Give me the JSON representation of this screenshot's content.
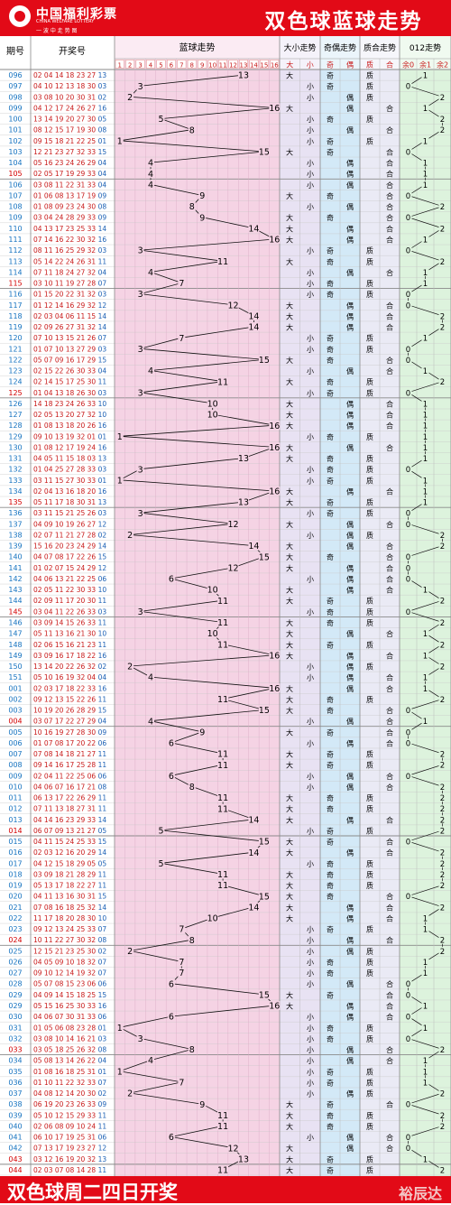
{
  "header": {
    "logo_cn": "中国福利彩票",
    "logo_en": "CHINA WELFARE LOTTERY",
    "logo_slogan": "一 波 中 走 势 图",
    "title": "双色球蓝球走势"
  },
  "columns": {
    "issue": "期号",
    "draw": "开奖号",
    "blue_trend": "蓝球走势",
    "bigsmall": "大小走势",
    "oddeven": "奇偶走势",
    "primecomp": "质合走势",
    "mod3": "012走势"
  },
  "subheaders": {
    "bigsmall": [
      "大",
      "小"
    ],
    "oddeven": [
      "奇",
      "偶"
    ],
    "primecomp": [
      "质",
      "合"
    ],
    "mod3": [
      "余0",
      "余1",
      "余2"
    ]
  },
  "marks": {
    "big": "大",
    "small": "小",
    "odd": "奇",
    "even": "偶",
    "prime": "质",
    "composite": "合"
  },
  "blue_numbers": [
    "1",
    "2",
    "3",
    "4",
    "5",
    "6",
    "7",
    "8",
    "9",
    "10",
    "11",
    "12",
    "13",
    "14",
    "15",
    "16"
  ],
  "colors": {
    "header_red": "#e20a17",
    "trend_bg": "#f5d3e4",
    "bigsmall_bg": "#e8e2f3",
    "oddeven_bg": "#d3e9f7",
    "primecomp_bg": "#eaeaf5",
    "mod3_bg": "#ddf3dd",
    "issue_text": "#1673c0",
    "draw_text": "#c81919",
    "line": "#111111"
  },
  "chart_data": {
    "type": "line",
    "title": "双色球蓝球走势",
    "ylabel": "期号",
    "xlabel": "蓝球走势",
    "xlim": [
      1,
      16
    ],
    "rows": [
      {
        "issue": "096",
        "reds": "02 04 14 18 23 27",
        "blue": 13
      },
      {
        "issue": "097",
        "reds": "04 10 12 13 18 30",
        "blue": 3
      },
      {
        "issue": "098",
        "reds": "03 08 10 20 30 31",
        "blue": 2
      },
      {
        "issue": "099",
        "reds": "04 12 17 24 26 27",
        "blue": 16
      },
      {
        "issue": "100",
        "reds": "13 14 19 20 27 30",
        "blue": 5
      },
      {
        "issue": "101",
        "reds": "08 12 15 17 19 30",
        "blue": 8
      },
      {
        "issue": "102",
        "reds": "09 15 18 21 22 25",
        "blue": 1
      },
      {
        "issue": "103",
        "reds": "12 21 23 27 32 33",
        "blue": 15
      },
      {
        "issue": "104",
        "reds": "05 16 23 24 26 29",
        "blue": 4
      },
      {
        "issue": "105",
        "reds": "02 05 17 19 29 33",
        "blue": 4
      },
      {
        "issue": "106",
        "reds": "03 08 11 22 31 33",
        "blue": 4
      },
      {
        "issue": "107",
        "reds": "01 06 08 13 17 19",
        "blue": 9
      },
      {
        "issue": "108",
        "reds": "01 08 09 23 24 30",
        "blue": 8
      },
      {
        "issue": "109",
        "reds": "03 04 24 28 29 33",
        "blue": 9
      },
      {
        "issue": "110",
        "reds": "04 13 17 23 25 33",
        "blue": 14
      },
      {
        "issue": "111",
        "reds": "07 14 16 22 30 32",
        "blue": 16
      },
      {
        "issue": "112",
        "reds": "08 11 16 25 29 32",
        "blue": 3
      },
      {
        "issue": "113",
        "reds": "05 14 22 24 26 31",
        "blue": 11
      },
      {
        "issue": "114",
        "reds": "07 11 18 24 27 32",
        "blue": 4
      },
      {
        "issue": "115",
        "reds": "03 10 11 19 27 28",
        "blue": 7
      },
      {
        "issue": "116",
        "reds": "01 15 20 22 31 32",
        "blue": 3
      },
      {
        "issue": "117",
        "reds": "01 12 14 16 29 32",
        "blue": 12
      },
      {
        "issue": "118",
        "reds": "02 03 04 06 11 15",
        "blue": 14
      },
      {
        "issue": "119",
        "reds": "02 09 26 27 31 32",
        "blue": 14
      },
      {
        "issue": "120",
        "reds": "07 10 13 15 21 26",
        "blue": 7
      },
      {
        "issue": "121",
        "reds": "01 07 10 13 27 29",
        "blue": 3
      },
      {
        "issue": "122",
        "reds": "05 07 09 16 17 29",
        "blue": 15
      },
      {
        "issue": "123",
        "reds": "02 15 22 26 30 33",
        "blue": 4
      },
      {
        "issue": "124",
        "reds": "02 14 15 17 25 30",
        "blue": 11
      },
      {
        "issue": "125",
        "reds": "01 04 13 18 26 30",
        "blue": 3
      },
      {
        "issue": "126",
        "reds": "14 18 23 24 26 33",
        "blue": 10
      },
      {
        "issue": "127",
        "reds": "02 05 13 20 27 32",
        "blue": 10
      },
      {
        "issue": "128",
        "reds": "01 08 13 18 20 26",
        "blue": 16
      },
      {
        "issue": "129",
        "reds": "09 10 13 19 32 01",
        "blue": 1
      },
      {
        "issue": "130",
        "reds": "01 08 12 17 19 24",
        "blue": 16
      },
      {
        "issue": "131",
        "reds": "04 05 11 15 18 03",
        "blue": 13
      },
      {
        "issue": "132",
        "reds": "01 04 25 27 28 33",
        "blue": 3
      },
      {
        "issue": "133",
        "reds": "03 11 15 27 30 33",
        "blue": 1
      },
      {
        "issue": "134",
        "reds": "02 04 13 16 18 20",
        "blue": 16
      },
      {
        "issue": "135",
        "reds": "05 11 17 18 30 31",
        "blue": 13
      },
      {
        "issue": "136",
        "reds": "03 11 15 21 25 26",
        "blue": 3
      },
      {
        "issue": "137",
        "reds": "04 09 10 19 26 27",
        "blue": 12
      },
      {
        "issue": "138",
        "reds": "02 07 11 21 27 28",
        "blue": 2
      },
      {
        "issue": "139",
        "reds": "15 16 20 23 24 29",
        "blue": 14
      },
      {
        "issue": "140",
        "reds": "04 07 08 17 22 26",
        "blue": 15
      },
      {
        "issue": "141",
        "reds": "01 02 07 15 24 29",
        "blue": 12
      },
      {
        "issue": "142",
        "reds": "04 06 13 21 22 25",
        "blue": 6
      },
      {
        "issue": "143",
        "reds": "02 05 11 22 30 33",
        "blue": 10
      },
      {
        "issue": "144",
        "reds": "02 09 11 17 20 30",
        "blue": 11
      },
      {
        "issue": "145",
        "reds": "03 04 11 22 26 33",
        "blue": 3
      },
      {
        "issue": "146",
        "reds": "03 09 14 15 26 33",
        "blue": 11
      },
      {
        "issue": "147",
        "reds": "05 11 13 16 21 30",
        "blue": 10
      },
      {
        "issue": "148",
        "reds": "02 06 15 16 21 23",
        "blue": 11
      },
      {
        "issue": "149",
        "reds": "03 09 16 17 18 22",
        "blue": 16
      },
      {
        "issue": "150",
        "reds": "13 14 20 22 26 32",
        "blue": 2
      },
      {
        "issue": "151",
        "reds": "05 10 16 19 32 04",
        "blue": 4
      },
      {
        "issue": "001",
        "reds": "02 03 17 18 22 33",
        "blue": 16
      },
      {
        "issue": "002",
        "reds": "09 12 13 15 22 26",
        "blue": 11
      },
      {
        "issue": "003",
        "reds": "10 19 20 26 28 29",
        "blue": 15
      },
      {
        "issue": "004",
        "reds": "03 07 17 22 27 29",
        "blue": 4
      },
      {
        "issue": "005",
        "reds": "10 16 19 27 28 30",
        "blue": 9
      },
      {
        "issue": "006",
        "reds": "01 07 08 17 20 22",
        "blue": 6
      },
      {
        "issue": "007",
        "reds": "07 08 14 18 21 27",
        "blue": 11
      },
      {
        "issue": "008",
        "reds": "09 14 16 17 25 28",
        "blue": 11
      },
      {
        "issue": "009",
        "reds": "02 04 11 22 25 06",
        "blue": 6
      },
      {
        "issue": "010",
        "reds": "04 06 07 16 17 21",
        "blue": 8
      },
      {
        "issue": "011",
        "reds": "06 13 17 22 26 29",
        "blue": 11
      },
      {
        "issue": "012",
        "reds": "07 11 13 18 27 31",
        "blue": 11
      },
      {
        "issue": "013",
        "reds": "04 14 16 23 29 33",
        "blue": 14
      },
      {
        "issue": "014",
        "reds": "06 07 09 13 21 27",
        "blue": 5
      },
      {
        "issue": "015",
        "reds": "04 11 15 24 25 33",
        "blue": 15
      },
      {
        "issue": "016",
        "reds": "02 03 12 16 20 29",
        "blue": 14
      },
      {
        "issue": "017",
        "reds": "04 12 15 18 29 05",
        "blue": 5
      },
      {
        "issue": "018",
        "reds": "03 09 18 21 28 29",
        "blue": 11
      },
      {
        "issue": "019",
        "reds": "05 13 17 18 22 27",
        "blue": 11
      },
      {
        "issue": "020",
        "reds": "04 11 13 16 30 31",
        "blue": 15
      },
      {
        "issue": "021",
        "reds": "07 08 16 18 25 32",
        "blue": 14
      },
      {
        "issue": "022",
        "reds": "11 17 18 20 28 30",
        "blue": 10
      },
      {
        "issue": "023",
        "reds": "09 12 13 24 25 33",
        "blue": 7
      },
      {
        "issue": "024",
        "reds": "10 11 22 27 30 32",
        "blue": 8
      },
      {
        "issue": "025",
        "reds": "12 15 21 23 25 30",
        "blue": 2
      },
      {
        "issue": "026",
        "reds": "04 05 09 10 18 32",
        "blue": 7
      },
      {
        "issue": "027",
        "reds": "09 10 12 14 19 32",
        "blue": 7
      },
      {
        "issue": "028",
        "reds": "05 07 08 15 23 06",
        "blue": 6
      },
      {
        "issue": "029",
        "reds": "04 09 14 15 18 25",
        "blue": 15
      },
      {
        "issue": "029",
        "reds": "05 15 16 25 30 33",
        "blue": 16
      },
      {
        "issue": "030",
        "reds": "04 06 07 30 31 33",
        "blue": 6
      },
      {
        "issue": "031",
        "reds": "01 05 06 08 23 28",
        "blue": 1
      },
      {
        "issue": "032",
        "reds": "03 08 10 14 16 21",
        "blue": 3
      },
      {
        "issue": "033",
        "reds": "03 05 18 25 26 32",
        "blue": 8
      },
      {
        "issue": "034",
        "reds": "05 08 13 14 26 22",
        "blue": 4
      },
      {
        "issue": "035",
        "reds": "01 08 16 18 25 31",
        "blue": 1
      },
      {
        "issue": "036",
        "reds": "01 10 11 22 32 33",
        "blue": 7
      },
      {
        "issue": "037",
        "reds": "04 08 12 14 20 30",
        "blue": 2
      },
      {
        "issue": "038",
        "reds": "06 19 20 23 26 33",
        "blue": 9
      },
      {
        "issue": "039",
        "reds": "05 10 12 15 29 33",
        "blue": 11
      },
      {
        "issue": "040",
        "reds": "02 06 08 09 10 24",
        "blue": 11
      },
      {
        "issue": "041",
        "reds": "06 10 17 19 25 31",
        "blue": 6
      },
      {
        "issue": "042",
        "reds": "07 13 17 19 23 27",
        "blue": 12
      },
      {
        "issue": "043",
        "reds": "03 12 16 19 20 32",
        "blue": 13
      },
      {
        "issue": "044",
        "reds": "02 03 07 08 14 28",
        "blue": 11
      }
    ]
  },
  "footer": {
    "left": "双色球周二四日开奖",
    "right": "裕辰达"
  }
}
